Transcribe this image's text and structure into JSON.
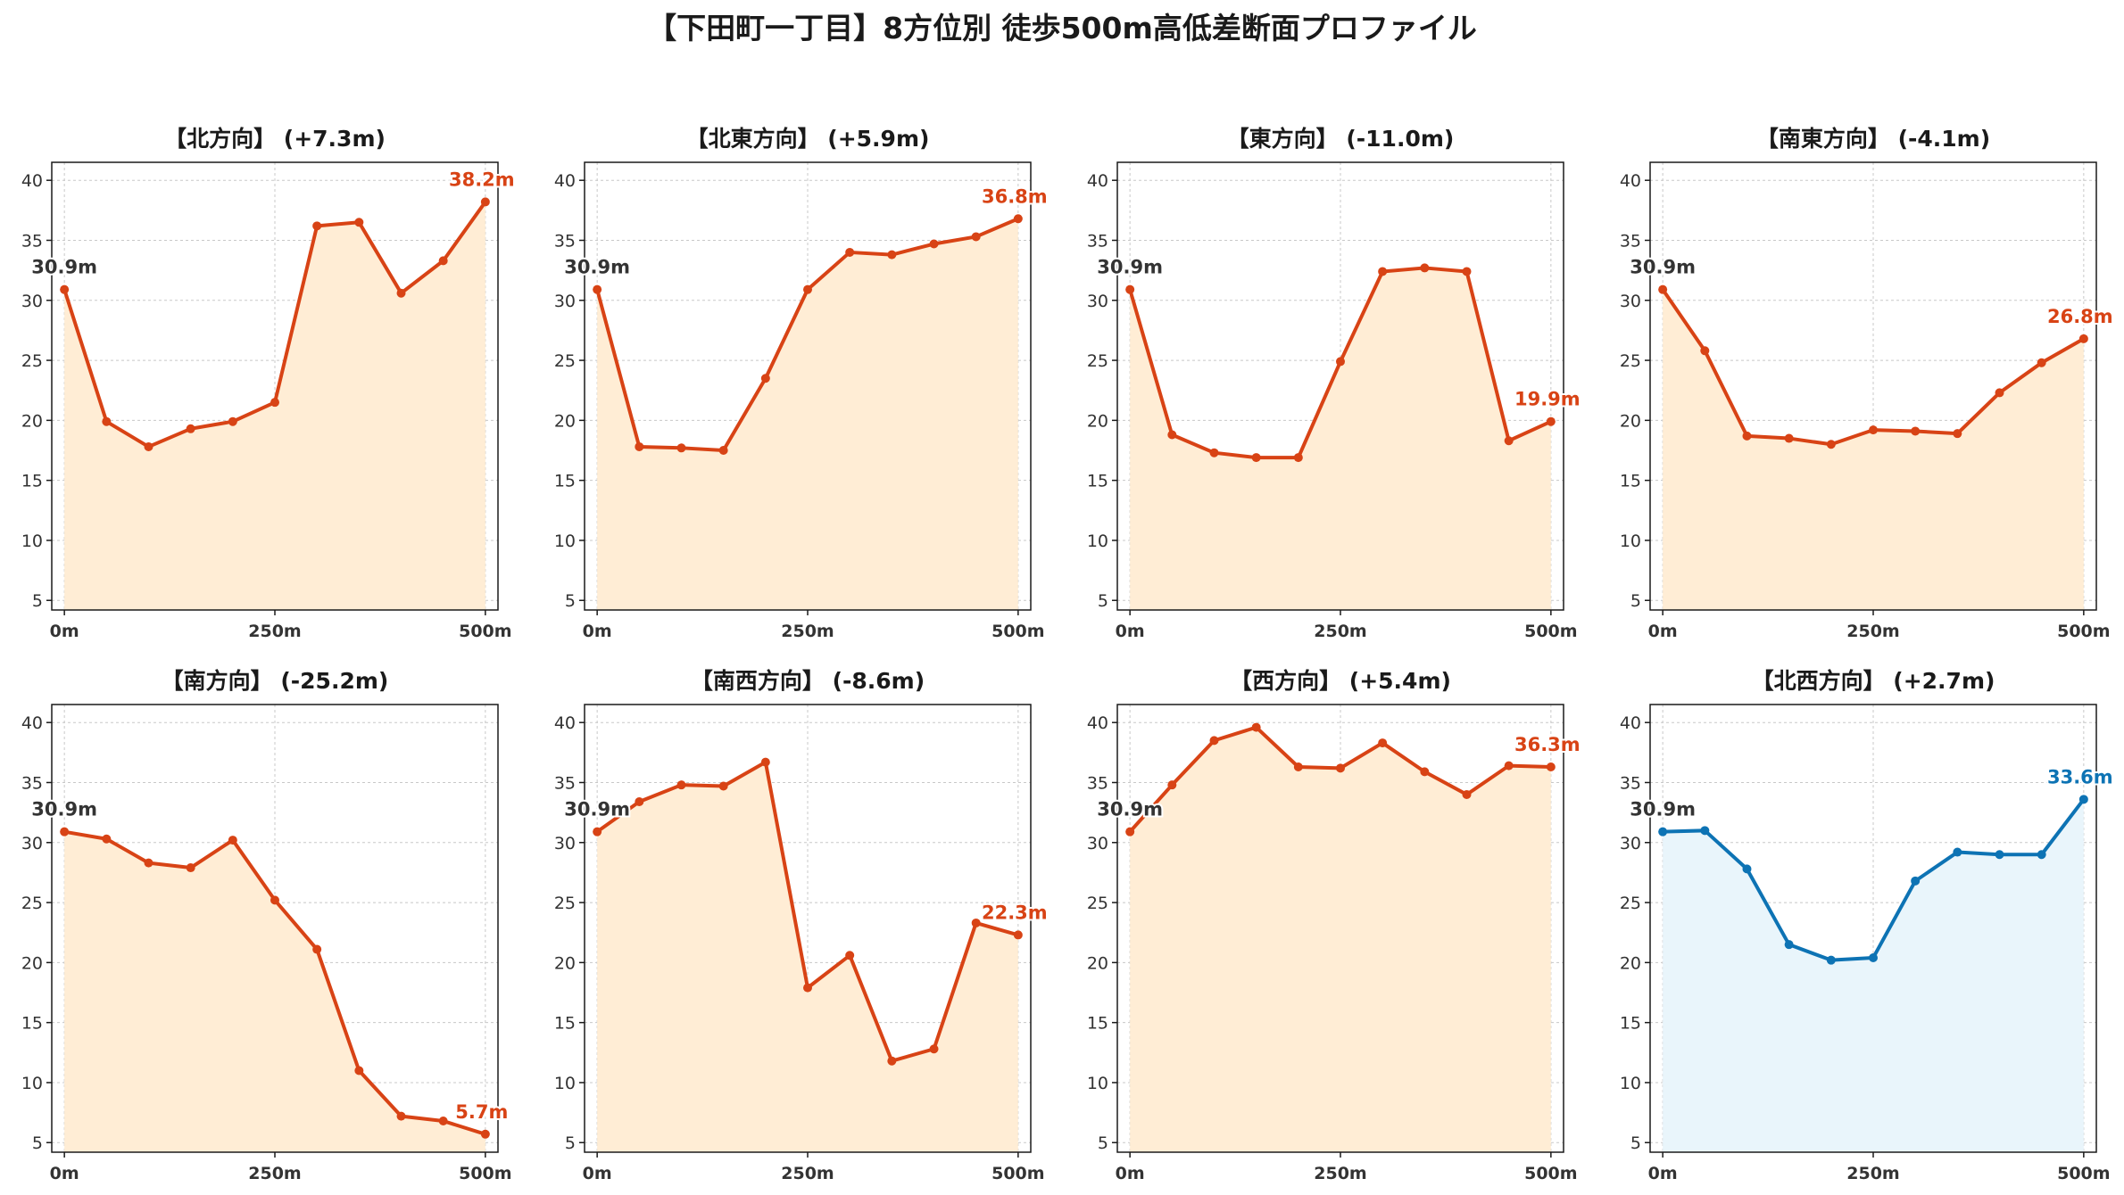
{
  "suptitle": "【下田町一丁目】8方位別 徒歩500m高低差断面プロファイル",
  "colors": {
    "warm_line": "#d84315",
    "warm_fill": "#ffedd5",
    "cool_line": "#0d73b4",
    "cool_fill": "#e9f5fb",
    "start_label": "#333333",
    "grid": "#c8c8c8"
  },
  "chart_data": [
    {
      "type": "area",
      "title": "【北方向】 (+7.3m)",
      "x": [
        0,
        50,
        100,
        150,
        200,
        250,
        300,
        350,
        400,
        450,
        500
      ],
      "values": [
        30.9,
        19.9,
        17.8,
        19.3,
        19.9,
        21.5,
        36.2,
        36.5,
        30.6,
        33.3,
        38.2
      ],
      "start_label": "30.9m",
      "end_label": "38.2m",
      "color": "warm",
      "xticks": [
        "0m",
        "250m",
        "500m"
      ],
      "yticks": [
        5,
        10,
        15,
        20,
        25,
        30,
        35,
        40
      ],
      "xlim": [
        -15,
        515
      ],
      "ylim": [
        4.2,
        41.5
      ],
      "grid": true
    },
    {
      "type": "area",
      "title": "【北東方向】 (+5.9m)",
      "x": [
        0,
        50,
        100,
        150,
        200,
        250,
        300,
        350,
        400,
        450,
        500
      ],
      "values": [
        30.9,
        17.8,
        17.7,
        17.5,
        23.5,
        30.9,
        34.0,
        33.8,
        34.7,
        35.3,
        36.8
      ],
      "start_label": "30.9m",
      "end_label": "36.8m",
      "color": "warm",
      "xticks": [
        "0m",
        "250m",
        "500m"
      ],
      "yticks": [
        5,
        10,
        15,
        20,
        25,
        30,
        35,
        40
      ],
      "xlim": [
        -15,
        515
      ],
      "ylim": [
        4.2,
        41.5
      ],
      "grid": true
    },
    {
      "type": "area",
      "title": "【東方向】 (-11.0m)",
      "x": [
        0,
        50,
        100,
        150,
        200,
        250,
        300,
        350,
        400,
        450,
        500
      ],
      "values": [
        30.9,
        18.8,
        17.3,
        16.9,
        16.9,
        24.9,
        32.4,
        32.7,
        32.4,
        18.3,
        19.9
      ],
      "start_label": "30.9m",
      "end_label": "19.9m",
      "color": "warm",
      "xticks": [
        "0m",
        "250m",
        "500m"
      ],
      "yticks": [
        5,
        10,
        15,
        20,
        25,
        30,
        35,
        40
      ],
      "xlim": [
        -15,
        515
      ],
      "ylim": [
        4.2,
        41.5
      ],
      "grid": true
    },
    {
      "type": "area",
      "title": "【南東方向】 (-4.1m)",
      "x": [
        0,
        50,
        100,
        150,
        200,
        250,
        300,
        350,
        400,
        450,
        500
      ],
      "values": [
        30.9,
        25.8,
        18.7,
        18.5,
        18.0,
        19.2,
        19.1,
        18.9,
        22.3,
        24.8,
        26.8
      ],
      "start_label": "30.9m",
      "end_label": "26.8m",
      "color": "warm",
      "xticks": [
        "0m",
        "250m",
        "500m"
      ],
      "yticks": [
        5,
        10,
        15,
        20,
        25,
        30,
        35,
        40
      ],
      "xlim": [
        -15,
        515
      ],
      "ylim": [
        4.2,
        41.5
      ],
      "grid": true
    },
    {
      "type": "area",
      "title": "【南方向】 (-25.2m)",
      "x": [
        0,
        50,
        100,
        150,
        200,
        250,
        300,
        350,
        400,
        450,
        500
      ],
      "values": [
        30.9,
        30.3,
        28.3,
        27.9,
        30.2,
        25.2,
        21.1,
        11.0,
        7.2,
        6.8,
        5.7
      ],
      "start_label": "30.9m",
      "end_label": "5.7m",
      "color": "warm",
      "xticks": [
        "0m",
        "250m",
        "500m"
      ],
      "yticks": [
        5,
        10,
        15,
        20,
        25,
        30,
        35,
        40
      ],
      "xlim": [
        -15,
        515
      ],
      "ylim": [
        4.2,
        41.5
      ],
      "grid": true
    },
    {
      "type": "area",
      "title": "【南西方向】 (-8.6m)",
      "x": [
        0,
        50,
        100,
        150,
        200,
        250,
        300,
        350,
        400,
        450,
        500
      ],
      "values": [
        30.9,
        33.4,
        34.8,
        34.7,
        36.7,
        17.9,
        20.6,
        11.8,
        12.8,
        23.3,
        22.3
      ],
      "start_label": "30.9m",
      "end_label": "22.3m",
      "color": "warm",
      "xticks": [
        "0m",
        "250m",
        "500m"
      ],
      "yticks": [
        5,
        10,
        15,
        20,
        25,
        30,
        35,
        40
      ],
      "xlim": [
        -15,
        515
      ],
      "ylim": [
        4.2,
        41.5
      ],
      "grid": true
    },
    {
      "type": "area",
      "title": "【西方向】 (+5.4m)",
      "x": [
        0,
        50,
        100,
        150,
        200,
        250,
        300,
        350,
        400,
        450,
        500
      ],
      "values": [
        30.9,
        34.8,
        38.5,
        39.6,
        36.3,
        36.2,
        38.3,
        35.9,
        34.0,
        36.4,
        36.3
      ],
      "start_label": "30.9m",
      "end_label": "36.3m",
      "color": "warm",
      "xticks": [
        "0m",
        "250m",
        "500m"
      ],
      "yticks": [
        5,
        10,
        15,
        20,
        25,
        30,
        35,
        40
      ],
      "xlim": [
        -15,
        515
      ],
      "ylim": [
        4.2,
        41.5
      ],
      "grid": true
    },
    {
      "type": "area",
      "title": "【北西方向】 (+2.7m)",
      "x": [
        0,
        50,
        100,
        150,
        200,
        250,
        300,
        350,
        400,
        450,
        500
      ],
      "values": [
        30.9,
        31.0,
        27.8,
        21.5,
        20.2,
        20.4,
        26.8,
        29.2,
        29.0,
        29.0,
        33.6
      ],
      "start_label": "30.9m",
      "end_label": "33.6m",
      "color": "cool",
      "xticks": [
        "0m",
        "250m",
        "500m"
      ],
      "yticks": [
        5,
        10,
        15,
        20,
        25,
        30,
        35,
        40
      ],
      "xlim": [
        -15,
        515
      ],
      "ylim": [
        4.2,
        41.5
      ],
      "grid": true
    }
  ]
}
